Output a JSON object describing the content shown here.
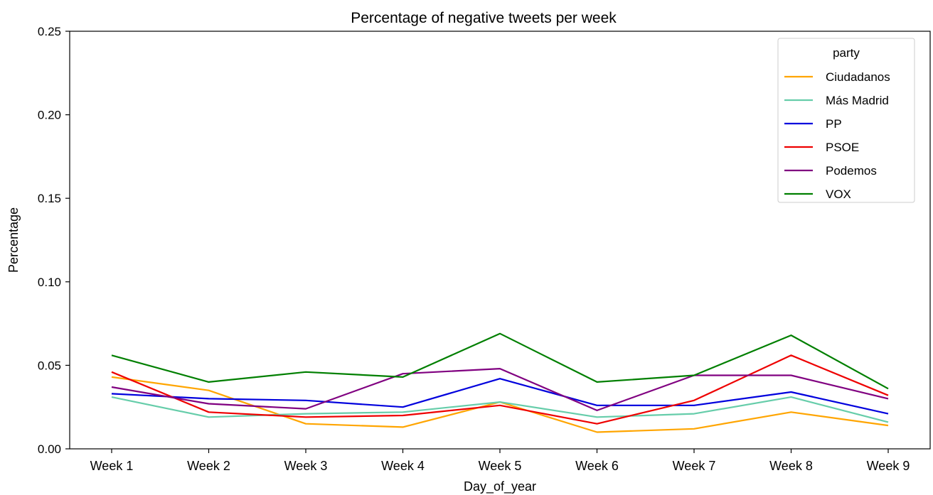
{
  "chart_data": {
    "type": "line",
    "title": "Percentage of negative tweets per week",
    "xlabel": "Day_of_year",
    "ylabel": "Percentage",
    "categories": [
      "Week 1",
      "Week 2",
      "Week 3",
      "Week 4",
      "Week 5",
      "Week 6",
      "Week 7",
      "Week 8",
      "Week 9"
    ],
    "ylim": [
      0,
      0.25
    ],
    "yticks": [
      "0.00",
      "0.05",
      "0.10",
      "0.15",
      "0.20",
      "0.25"
    ],
    "grid": false,
    "legend": {
      "title": "party",
      "position": "top-right"
    },
    "series": [
      {
        "name": "Ciudadanos",
        "color": "#FFA500",
        "values": [
          0.043,
          0.035,
          0.015,
          0.013,
          0.028,
          0.01,
          0.012,
          0.022,
          0.014
        ]
      },
      {
        "name": "Más Madrid",
        "color": "#66CDAA",
        "values": [
          0.031,
          0.019,
          0.021,
          0.022,
          0.028,
          0.019,
          0.021,
          0.031,
          0.016
        ]
      },
      {
        "name": "PP",
        "color": "#0000DD",
        "values": [
          0.033,
          0.03,
          0.029,
          0.025,
          0.042,
          0.026,
          0.026,
          0.034,
          0.021
        ]
      },
      {
        "name": "PSOE",
        "color": "#EE0000",
        "values": [
          0.046,
          0.022,
          0.019,
          0.02,
          0.026,
          0.015,
          0.029,
          0.056,
          0.032
        ]
      },
      {
        "name": "Podemos",
        "color": "#800080",
        "values": [
          0.037,
          0.027,
          0.024,
          0.045,
          0.048,
          0.023,
          0.044,
          0.044,
          0.03
        ]
      },
      {
        "name": "VOX",
        "color": "#007F00",
        "values": [
          0.056,
          0.04,
          0.046,
          0.043,
          0.069,
          0.04,
          0.044,
          0.068,
          0.036
        ]
      }
    ]
  }
}
